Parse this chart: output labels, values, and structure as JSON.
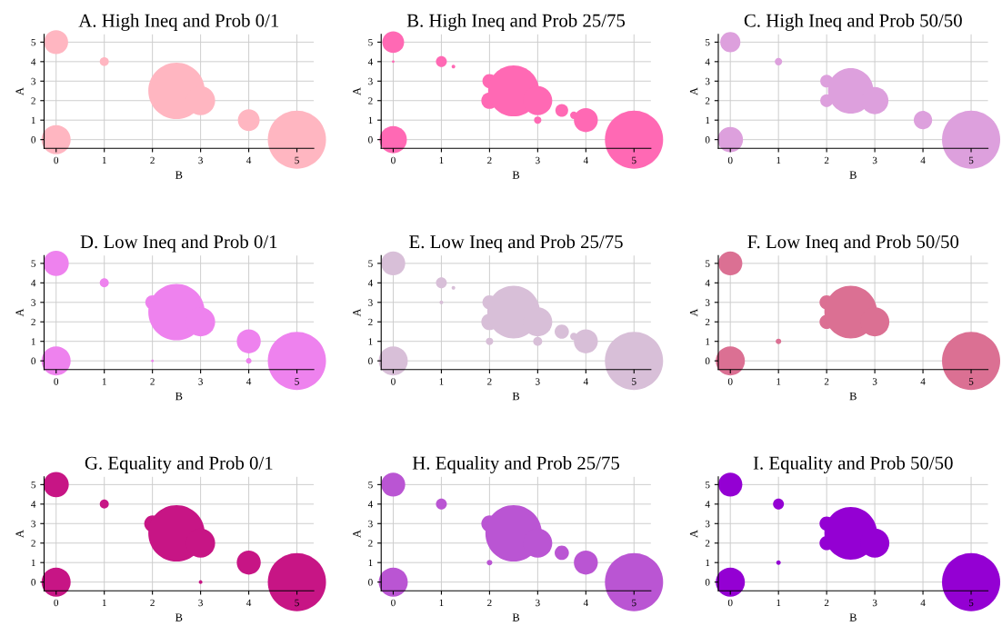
{
  "chart_data": [
    {
      "type": "bubble",
      "title": "A. High Ineq and Prob 0/1",
      "xlabel": "B",
      "ylabel": "A",
      "xlim": [
        -0.25,
        5.35
      ],
      "ylim": [
        -0.45,
        5.4
      ],
      "xticks": [
        0,
        1,
        2,
        3,
        4,
        5
      ],
      "yticks": [
        0,
        1,
        2,
        3,
        4,
        5
      ],
      "grid": true,
      "series": [
        {
          "color": "#ffb6c1",
          "x": [
            0,
            0,
            1,
            2.5,
            3,
            4,
            5
          ],
          "values": [
            5,
            0,
            4,
            2.5,
            2,
            1,
            0
          ],
          "sizes": [
            0.17,
            0.25,
            0.024,
            0.94,
            0.25,
            0.14,
            1
          ]
        }
      ]
    },
    {
      "type": "bubble",
      "title": "B. High Ineq and Prob 25/75",
      "xlabel": "B",
      "ylabel": "A",
      "xlim": [
        -0.25,
        5.35
      ],
      "ylim": [
        -0.45,
        5.4
      ],
      "xticks": [
        0,
        1,
        2,
        3,
        4,
        5
      ],
      "yticks": [
        0,
        1,
        2,
        3,
        4,
        5
      ],
      "grid": true,
      "series": [
        {
          "color": "#ff69b4",
          "x": [
            0,
            0,
            0,
            1,
            1.25,
            2,
            2,
            2.5,
            3,
            3,
            3.5,
            3.75,
            4,
            5
          ],
          "values": [
            5,
            4,
            0,
            4,
            3.75,
            3,
            2,
            2.5,
            2,
            1,
            1.5,
            1.25,
            1,
            0
          ],
          "sizes": [
            0.14,
            0.002,
            0.22,
            0.035,
            0.004,
            0.06,
            0.08,
            0.77,
            0.25,
            0.016,
            0.048,
            0.016,
            0.17,
            1
          ]
        }
      ]
    },
    {
      "type": "bubble",
      "title": "C. High Ineq and Prob 50/50",
      "xlabel": "B",
      "ylabel": "A",
      "xlim": [
        -0.25,
        5.35
      ],
      "ylim": [
        -0.45,
        5.4
      ],
      "xticks": [
        0,
        1,
        2,
        3,
        4,
        5
      ],
      "yticks": [
        0,
        1,
        2,
        3,
        4,
        5
      ],
      "grid": true,
      "series": [
        {
          "color": "#dda0dd",
          "x": [
            0,
            0,
            1,
            2,
            2,
            2.5,
            3,
            4,
            5
          ],
          "values": [
            5,
            0,
            4,
            3,
            2,
            2.5,
            2,
            1,
            0
          ],
          "sizes": [
            0.12,
            0.19,
            0.016,
            0.048,
            0.048,
            0.61,
            0.22,
            0.1,
            1
          ]
        }
      ]
    },
    {
      "type": "bubble",
      "title": "D. Low Ineq and Prob 0/1",
      "xlabel": "B",
      "ylabel": "A",
      "xlim": [
        -0.25,
        5.35
      ],
      "ylim": [
        -0.45,
        5.4
      ],
      "xticks": [
        0,
        1,
        2,
        3,
        4,
        5
      ],
      "yticks": [
        0,
        1,
        2,
        3,
        4,
        5
      ],
      "grid": true,
      "series": [
        {
          "color": "#ee82ee",
          "x": [
            0,
            0,
            1,
            2,
            2.5,
            3,
            4,
            2,
            4,
            5
          ],
          "values": [
            5,
            0,
            4,
            3,
            2.5,
            2,
            1,
            0,
            0,
            0
          ],
          "sizes": [
            0.19,
            0.25,
            0.024,
            0.06,
            0.94,
            0.25,
            0.17,
            0.002,
            0.009,
            1
          ]
        }
      ]
    },
    {
      "type": "bubble",
      "title": "E. Low Ineq and Prob 25/75",
      "xlabel": "B",
      "ylabel": "A",
      "xlim": [
        -0.25,
        5.35
      ],
      "ylim": [
        -0.45,
        5.4
      ],
      "xticks": [
        0,
        1,
        2,
        3,
        4,
        5
      ],
      "yticks": [
        0,
        1,
        2,
        3,
        4,
        5
      ],
      "grid": true,
      "series": [
        {
          "color": "#d8bfd8",
          "x": [
            0,
            0,
            1,
            1,
            1.25,
            2,
            2,
            2,
            2.5,
            3,
            3,
            3.5,
            3.75,
            4,
            5
          ],
          "values": [
            5,
            0,
            4,
            3,
            3.75,
            3,
            2,
            1,
            2.5,
            2,
            1,
            1.5,
            1.25,
            1,
            0
          ],
          "sizes": [
            0.17,
            0.25,
            0.035,
            0.004,
            0.004,
            0.06,
            0.08,
            0.016,
            0.82,
            0.25,
            0.024,
            0.06,
            0.016,
            0.17,
            1
          ]
        }
      ]
    },
    {
      "type": "bubble",
      "title": "F. Low Ineq and Prob 50/50",
      "xlabel": "B",
      "ylabel": "A",
      "xlim": [
        -0.25,
        5.35
      ],
      "ylim": [
        -0.45,
        5.4
      ],
      "xticks": [
        0,
        1,
        2,
        3,
        4,
        5
      ],
      "yticks": [
        0,
        1,
        2,
        3,
        4,
        5
      ],
      "grid": true,
      "series": [
        {
          "color": "#db7093",
          "x": [
            0,
            0,
            1,
            2,
            2,
            2.5,
            3,
            5
          ],
          "values": [
            5,
            0,
            1,
            3,
            2,
            2.5,
            2,
            0
          ],
          "sizes": [
            0.17,
            0.25,
            0.009,
            0.06,
            0.06,
            0.82,
            0.25,
            1
          ]
        }
      ]
    },
    {
      "type": "bubble",
      "title": "G. Equality and Prob 0/1",
      "xlabel": "B",
      "ylabel": "A",
      "xlim": [
        -0.25,
        5.35
      ],
      "ylim": [
        -0.45,
        5.4
      ],
      "xticks": [
        0,
        1,
        2,
        3,
        4,
        5
      ],
      "yticks": [
        0,
        1,
        2,
        3,
        4,
        5
      ],
      "grid": true,
      "series": [
        {
          "color": "#c71585",
          "x": [
            0,
            0,
            1,
            2,
            2.5,
            3,
            3,
            4,
            5
          ],
          "values": [
            5,
            0,
            4,
            3,
            2.5,
            2,
            0,
            1,
            0
          ],
          "sizes": [
            0.19,
            0.25,
            0.024,
            0.08,
            0.94,
            0.25,
            0.004,
            0.17,
            1
          ]
        }
      ]
    },
    {
      "type": "bubble",
      "title": "H. Equality and Prob 25/75",
      "xlabel": "B",
      "ylabel": "A",
      "xlim": [
        -0.25,
        5.35
      ],
      "ylim": [
        -0.45,
        5.4
      ],
      "xticks": [
        0,
        1,
        2,
        3,
        4,
        5
      ],
      "yticks": [
        0,
        1,
        2,
        3,
        4,
        5
      ],
      "grid": true,
      "series": [
        {
          "color": "#ba55d3",
          "x": [
            0,
            0,
            1,
            2,
            2,
            2.5,
            3,
            3.5,
            4,
            5
          ],
          "values": [
            5,
            0,
            4,
            3,
            1,
            2.5,
            2,
            1.5,
            1,
            0
          ],
          "sizes": [
            0.17,
            0.25,
            0.035,
            0.08,
            0.009,
            0.94,
            0.25,
            0.06,
            0.17,
            1
          ]
        }
      ]
    },
    {
      "type": "bubble",
      "title": "I. Equality and Prob 50/50",
      "xlabel": "B",
      "ylabel": "A",
      "xlim": [
        -0.25,
        5.35
      ],
      "ylim": [
        -0.45,
        5.4
      ],
      "xticks": [
        0,
        1,
        2,
        3,
        4,
        5
      ],
      "yticks": [
        0,
        1,
        2,
        3,
        4,
        5
      ],
      "grid": true,
      "series": [
        {
          "color": "#9400d3",
          "x": [
            0,
            0,
            1,
            1,
            2,
            2,
            2.5,
            3,
            5
          ],
          "values": [
            5,
            0,
            4,
            1,
            3,
            2,
            2.5,
            2,
            0
          ],
          "sizes": [
            0.17,
            0.25,
            0.035,
            0.006,
            0.06,
            0.06,
            0.82,
            0.25,
            1
          ]
        }
      ]
    }
  ]
}
